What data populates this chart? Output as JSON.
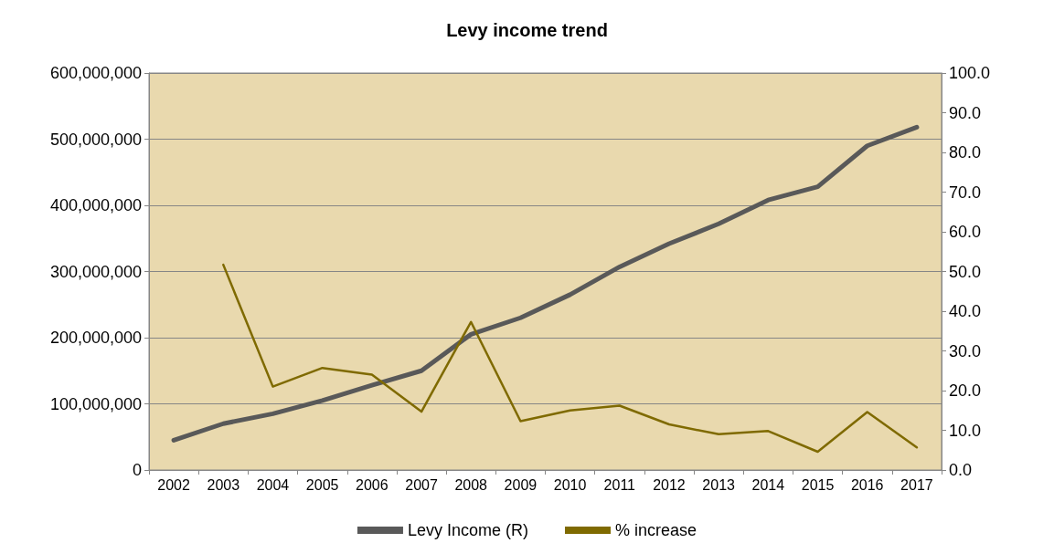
{
  "chart_data": {
    "type": "line",
    "title": "Levy income trend",
    "categories": [
      "2002",
      "2003",
      "2004",
      "2005",
      "2006",
      "2007",
      "2008",
      "2009",
      "2010",
      "2011",
      "2012",
      "2013",
      "2014",
      "2015",
      "2016",
      "2017"
    ],
    "series": [
      {
        "name": "Levy Income (R)",
        "color": "#595959",
        "values": [
          45000000,
          70000000,
          85000000,
          105000000,
          128000000,
          150000000,
          205000000,
          230000000,
          265000000,
          307000000,
          342000000,
          372000000,
          408000000,
          428000000,
          490000000,
          518000000
        ]
      },
      {
        "name": "% increase",
        "color": "#7f6a00",
        "axis": "y2",
        "values": [
          null,
          51.7,
          21,
          25.7,
          24,
          14.7,
          37.3,
          12.3,
          15,
          16.2,
          11.5,
          9,
          9.8,
          4.6,
          14.6,
          5.7
        ]
      }
    ],
    "ylim": [
      0,
      600000000
    ],
    "yticks": [
      {
        "value": 0,
        "label": "0"
      },
      {
        "value": 100000000,
        "label": "100,000,000"
      },
      {
        "value": 200000000,
        "label": "200,000,000"
      },
      {
        "value": 300000000,
        "label": "300,000,000"
      },
      {
        "value": 400000000,
        "label": "400,000,000"
      },
      {
        "value": 500000000,
        "label": "500,000,000"
      },
      {
        "value": 600000000,
        "label": "600,000,000"
      }
    ],
    "y2lim": [
      0,
      100
    ],
    "y2ticks": [
      {
        "value": 0,
        "label": "0.0"
      },
      {
        "value": 10,
        "label": "10.0"
      },
      {
        "value": 20,
        "label": "20.0"
      },
      {
        "value": 30,
        "label": "30.0"
      },
      {
        "value": 40,
        "label": "40.0"
      },
      {
        "value": 50,
        "label": "50.0"
      },
      {
        "value": 60,
        "label": "60.0"
      },
      {
        "value": 70,
        "label": "70.0"
      },
      {
        "value": 80,
        "label": "80.0"
      },
      {
        "value": 90,
        "label": "90.0"
      },
      {
        "value": 100,
        "label": "100.0"
      }
    ],
    "grid": "y",
    "legend": "bottom",
    "marker": "none"
  }
}
